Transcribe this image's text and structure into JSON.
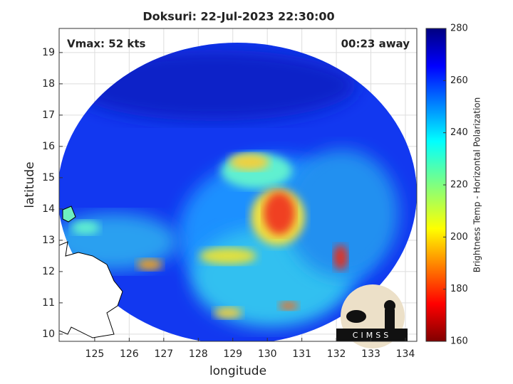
{
  "chart_data": {
    "type": "image",
    "title": "Doksuri: 22-Jul-2023 22:30:00",
    "annotations": [
      "Vmax: 52 kts",
      "00:23 away"
    ],
    "x_label": "longitude",
    "y_label": "latitude",
    "xlim": [
      123.97,
      134.33
    ],
    "ylim": [
      9.77,
      19.77
    ],
    "xticks": [
      125,
      126,
      127,
      128,
      129,
      130,
      131,
      132,
      133,
      134
    ],
    "yticks": [
      10,
      11,
      12,
      13,
      14,
      15,
      16,
      17,
      18,
      19
    ],
    "grid": true,
    "colorbar": {
      "label": "Brightness Temp - Horizontal Polarization",
      "lim": [
        160,
        280
      ],
      "ticks": [
        160,
        180,
        200,
        220,
        240,
        260,
        280
      ]
    },
    "logo": "CIMSS"
  }
}
